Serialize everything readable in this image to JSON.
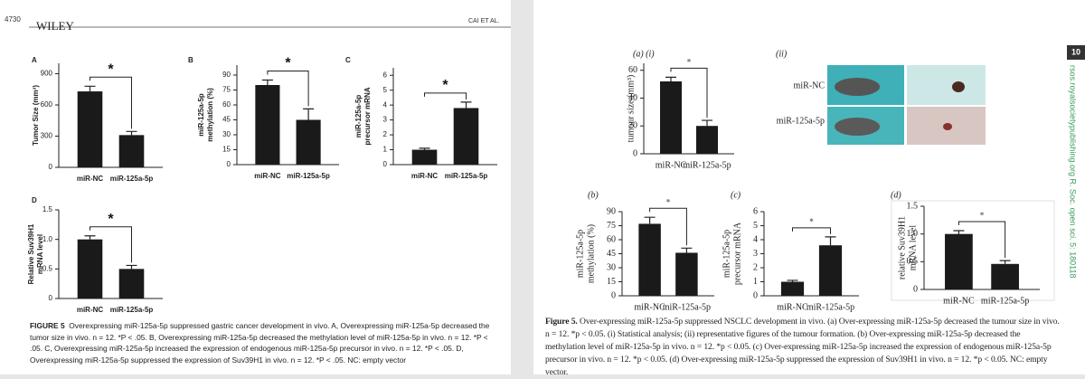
{
  "left_page": {
    "page_number": "4730",
    "publisher": "WILEY",
    "running_head": "CAI ET AL.",
    "caption": {
      "label": "FIGURE 5",
      "text": "Overexpressing miR-125a-5p suppressed gastric cancer development in vivo. A, Overexpressing miR-125a-5p decreased the tumor size in vivo. n = 12. *P < .05. B, Overexpressing miR-125a-5p decreased the methylation level of miR-125a-5p in vivo. n = 12. *P < .05. C, Overexpressing miR-125a-5p increased the expression of endogenous miR-125a-5p precursor in vivo. n = 12. *P < .05. D, Overexpressing miR-125a-5p suppressed the expression of Suv39H1 in vivo. n = 12. *P < .05. NC: empty vector"
    }
  },
  "right_page": {
    "page_number": "10",
    "side_text": "rsos.royalsocietypublishing.org R. Soc. open sci. 5: 180118",
    "images": {
      "label": "(ii)",
      "rows": [
        "miR-NC",
        "miR-125a-5p"
      ]
    },
    "caption": {
      "label": "Figure 5.",
      "text": "Over-expressing miR-125a-5p suppressed NSCLC development in vivo. (a) Over-expressing miR-125a-5p decreased the tumour size in vivo. n = 12. *p < 0.05. (i) Statistical analysis; (ii) representative figures of the tumour formation. (b) Over-expressing miR-125a-5p decreased the methylation level of miR-125a-5p in vivo. n = 12. *p < 0.05. (c) Over-expressing miR-125a-5p increased the expression of endogenous miR-125a-5p precursor in vivo. n = 12. *p < 0.05. (d) Over-expressing miR-125a-5p suppressed the expression of Suv39H1 in vivo. n = 12. *p < 0.05. NC: empty vector."
    }
  },
  "chart_data": [
    {
      "type": "bar",
      "label": "A",
      "ylabel": [
        "Tumor Size (mm³)"
      ],
      "categories": [
        "miR-NC",
        "miR-125a-5p"
      ],
      "values": [
        730,
        310
      ],
      "errors": [
        50,
        35
      ],
      "color": "#1a1a1a",
      "ylim": [
        0,
        1000
      ],
      "yticks": [
        0,
        300,
        600,
        900
      ],
      "annotation": "*"
    },
    {
      "type": "bar",
      "label": "B",
      "ylabel": [
        "miR-125a-5p",
        "methylation (%)"
      ],
      "categories": [
        "miR-NC",
        "miR-125a-5p"
      ],
      "values": [
        80,
        45
      ],
      "errors": [
        5,
        11
      ],
      "color": "#1a1a1a",
      "ylim": [
        0,
        100
      ],
      "yticks": [
        0,
        15,
        30,
        45,
        60,
        75,
        90
      ],
      "annotation": "*"
    },
    {
      "type": "bar",
      "label": "C",
      "ylabel": [
        "miR-125a-5p",
        "precursor mRNA"
      ],
      "categories": [
        "miR-NC",
        "miR-125a-5p"
      ],
      "values": [
        1.0,
        3.8
      ],
      "errors": [
        0.1,
        0.4
      ],
      "color": "#1a1a1a",
      "ylim": [
        0,
        6.5
      ],
      "yticks": [
        0,
        1,
        2,
        3,
        4,
        5,
        6
      ],
      "annotation": "*"
    },
    {
      "type": "bar",
      "label": "D",
      "ylabel": [
        "Relative Suv39H1",
        "mRNA level"
      ],
      "categories": [
        "miR-NC",
        "miR-125a-5p"
      ],
      "values": [
        1.0,
        0.5
      ],
      "errors": [
        0.06,
        0.06
      ],
      "color": "#1a1a1a",
      "ylim": [
        0,
        1.5
      ],
      "yticks": [
        0,
        {
          "value": 0.5,
          "label": "0.5"
        },
        {
          "value": 1,
          "label": "1.0"
        },
        {
          "value": 1.5,
          "label": "1.5"
        }
      ],
      "annotation": "*"
    },
    {
      "type": "bar",
      "label": "(a) (i)",
      "ylabel": [
        "tumour size (mm³)"
      ],
      "categories": [
        "miR-NC",
        "miR-125a-5p"
      ],
      "values": [
        52,
        20
      ],
      "errors": [
        3,
        4
      ],
      "color": "#1a1a1a",
      "ylim": [
        0,
        65
      ],
      "yticks": [
        0,
        20,
        40,
        60
      ],
      "annotation": "*"
    },
    {
      "type": "bar",
      "label": "(b)",
      "ylabel": [
        "miR-125a-5p",
        "methylation (%)"
      ],
      "categories": [
        "miR-NC",
        "miR-125a-5p"
      ],
      "values": [
        77,
        46
      ],
      "errors": [
        7,
        5
      ],
      "color": "#1a1a1a",
      "ylim": [
        0,
        90
      ],
      "yticks": [
        0,
        15,
        30,
        45,
        60,
        75,
        90
      ],
      "annotation": "*"
    },
    {
      "type": "bar",
      "label": "(c)",
      "ylabel": [
        "miR-125a-5p",
        "precursor mRNA"
      ],
      "categories": [
        "miR-NC",
        "miR-125a-5p"
      ],
      "values": [
        1.0,
        3.6
      ],
      "errors": [
        0.1,
        0.6
      ],
      "color": "#1a1a1a",
      "ylim": [
        0,
        6
      ],
      "yticks": [
        0,
        1,
        2,
        3,
        4,
        5,
        6
      ],
      "annotation": "*"
    },
    {
      "type": "bar",
      "label": "(d)",
      "ylabel": [
        "relative Suv39H1",
        "mRNA level"
      ],
      "categories": [
        "miR-NC",
        "miR-125a-5p"
      ],
      "values": [
        1.0,
        0.46
      ],
      "errors": [
        0.06,
        0.06
      ],
      "color": "#1a1a1a",
      "ylim": [
        0,
        1.5
      ],
      "yticks": [
        0,
        {
          "value": 0.5,
          "label": "0.5"
        },
        {
          "value": 1,
          "label": "1.0"
        },
        {
          "value": 1.5,
          "label": "1.5"
        }
      ],
      "annotation": "*"
    }
  ]
}
